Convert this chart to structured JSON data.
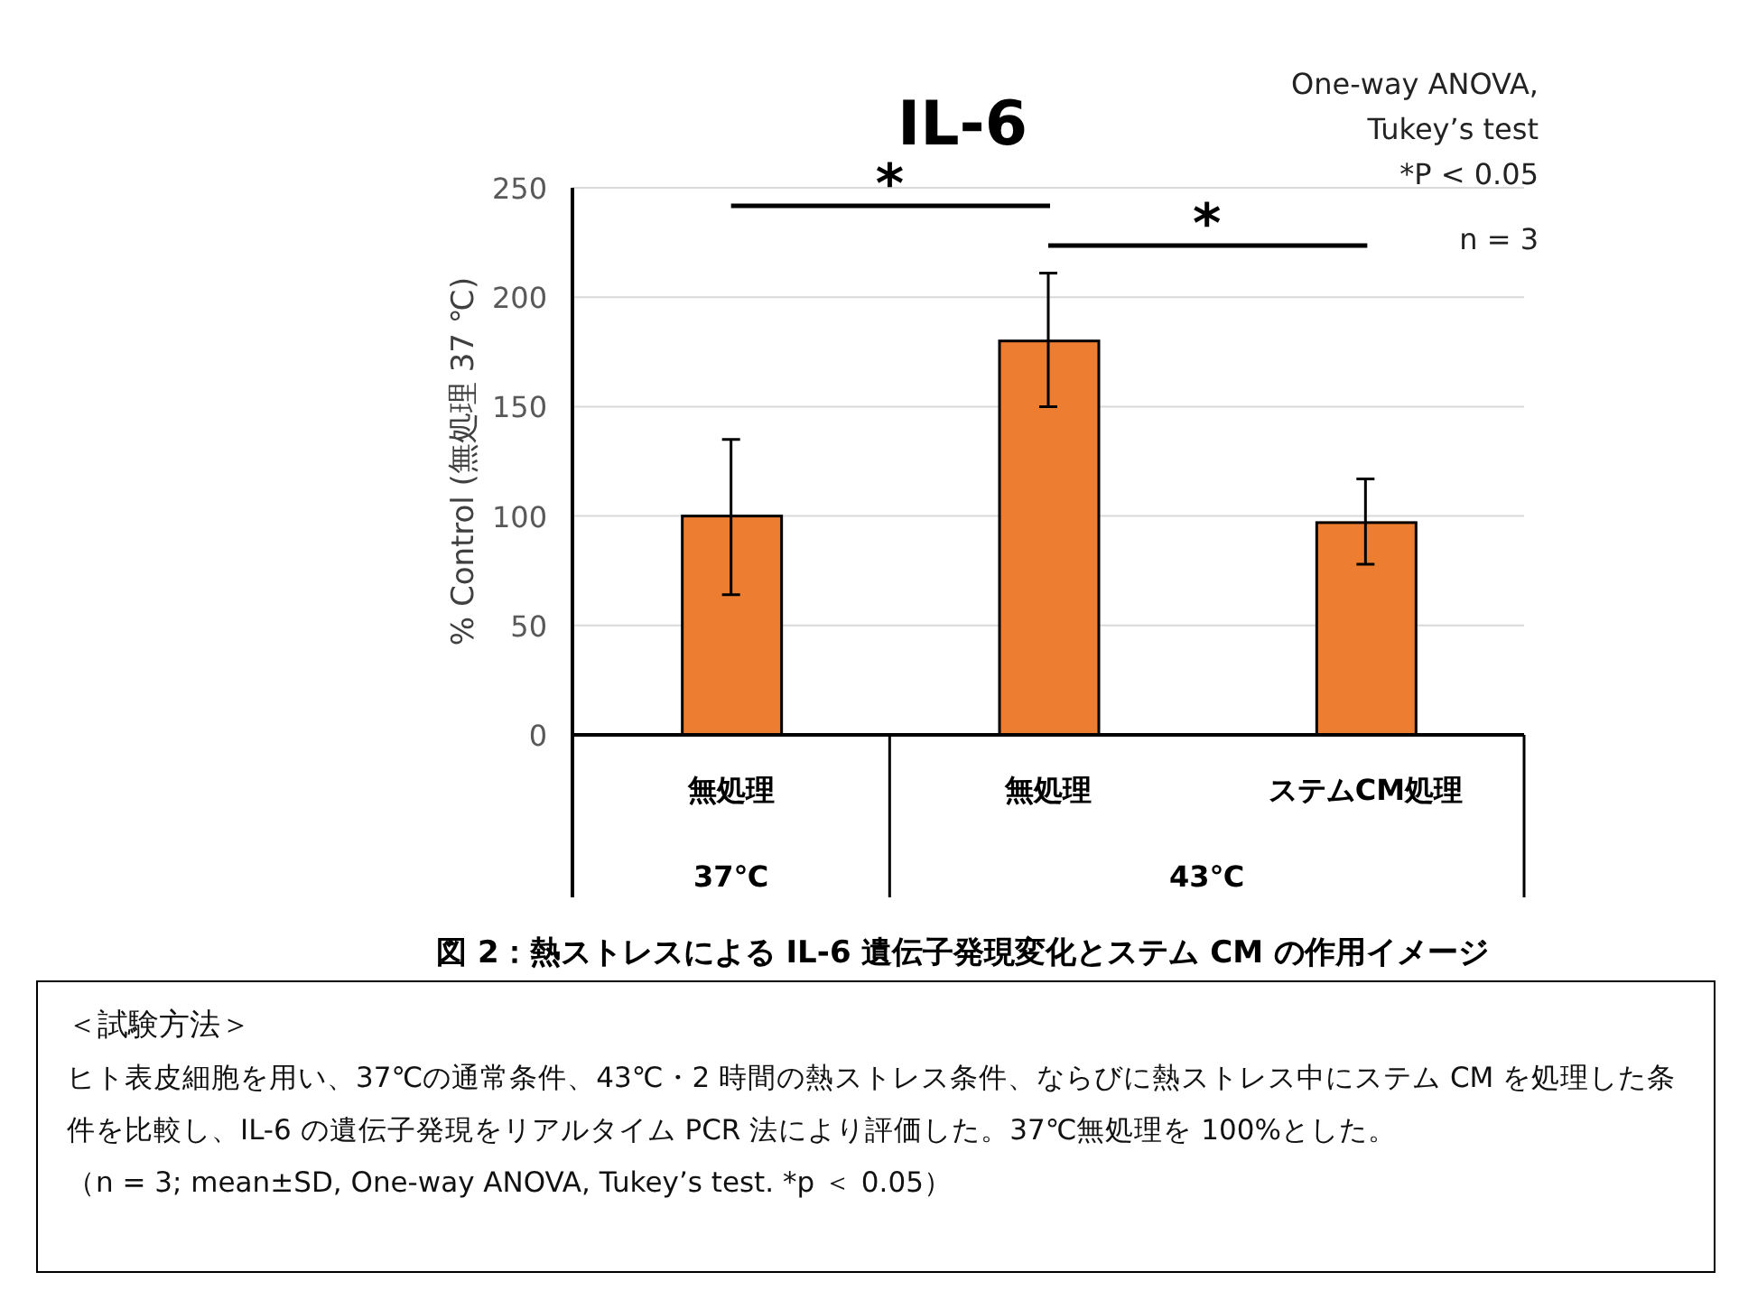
{
  "chart_data": {
    "type": "bar",
    "title": "IL-6",
    "ylabel": "% Control (無処理  37 ℃)",
    "categories": [
      "無処理",
      "無処理",
      "ステムCM処理"
    ],
    "values": [
      100,
      180,
      97
    ],
    "errors": [
      [
        64,
        135
      ],
      [
        150,
        211
      ],
      [
        78,
        117
      ]
    ],
    "color": "#ed7d31",
    "ylim": [
      0,
      250
    ],
    "yticks": [
      0,
      50,
      100,
      150,
      200,
      250
    ],
    "grid": "y",
    "annotations": [
      "One-way ANOVA,",
      "Tukey’s test",
      "*P < 0.05",
      "n = 3",
      "*",
      "*",
      "37℃",
      "43℃",
      "図 2：熱ストレスによる IL-6 遺伝子発現変化とステム CM の作用イメージ",
      "＜試験方法＞",
      "ヒト表皮細胞を用い、37℃の通常条件、43℃・2 時間の熱ストレス条件、ならびに熱ストレス中にステム CM を処理した条件を比較し、IL-6 の遺伝子発現をリアルタイム PCR 法により評価した。37℃無処理を 100%とした。",
      "（n = 3; mean±SD, One-way ANOVA, Tukey’s test. *p ＜ 0.05）"
    ]
  }
}
